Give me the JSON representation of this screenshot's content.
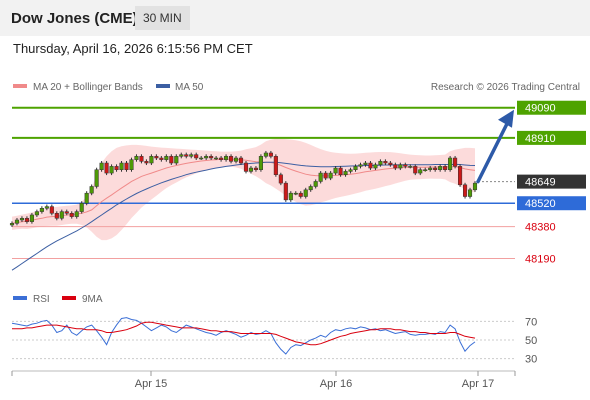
{
  "header": {
    "title": "Dow Jones (CME)",
    "interval": "30 MIN",
    "datetime": "Thursday, April 16, 2026 6:15:56 PM CET",
    "credit": "Research © 2026 Trading Central"
  },
  "legend": {
    "ma20": "MA 20 + Bollinger Bands",
    "ma50": "MA 50",
    "rsi": "RSI",
    "rsi_ma": "9MA"
  },
  "colors": {
    "resistance": "#4ea300",
    "pivot": "#2e6bd8",
    "support": "#d9000f",
    "current": "#333333",
    "arrow": "#2d5aa8",
    "ma20": "#f08a8a",
    "band": "#fbd5d5",
    "ma50": "#3c5fa3",
    "rsi": "#3b6fd6",
    "rsi_ma": "#d9000f"
  },
  "chart_data": {
    "type": "candlestick",
    "x_ticks": [
      "Apr 15",
      "Apr 16",
      "Apr 17"
    ],
    "y_range": [
      48020,
      49160
    ],
    "levels": [
      {
        "value": 49090,
        "label": "49090",
        "kind": "resistance"
      },
      {
        "value": 48910,
        "label": "48910",
        "kind": "resistance"
      },
      {
        "value": 48649,
        "label": "48649",
        "kind": "current"
      },
      {
        "value": 48520,
        "label": "48520",
        "kind": "pivot"
      },
      {
        "value": 48380,
        "label": "48380",
        "kind": "support"
      },
      {
        "value": 48190,
        "label": "48190",
        "kind": "support"
      }
    ],
    "forecast_arrow": {
      "from": 48649,
      "to": 49090
    },
    "price_close": [
      48400,
      48420,
      48430,
      48410,
      48450,
      48470,
      48490,
      48500,
      48460,
      48430,
      48470,
      48460,
      48440,
      48470,
      48520,
      48580,
      48620,
      48720,
      48760,
      48700,
      48740,
      48720,
      48760,
      48720,
      48780,
      48800,
      48770,
      48760,
      48800,
      48790,
      48780,
      48800,
      48760,
      48800,
      48810,
      48800,
      48810,
      48790,
      48790,
      48800,
      48790,
      48790,
      48780,
      48800,
      48770,
      48790,
      48760,
      48710,
      48730,
      48720,
      48800,
      48820,
      48800,
      48690,
      48640,
      48540,
      48580,
      48580,
      48560,
      48600,
      48620,
      48650,
      48700,
      48670,
      48700,
      48730,
      48690,
      48710,
      48720,
      48740,
      48750,
      48760,
      48730,
      48750,
      48770,
      48760,
      48750,
      48730,
      48750,
      48740,
      48740,
      48700,
      48720,
      48720,
      48730,
      48720,
      48740,
      48720,
      48790,
      48740,
      48630,
      48560,
      48600,
      48640
    ],
    "ma20": [
      48400,
      48405,
      48410,
      48412,
      48418,
      48425,
      48430,
      48437,
      48440,
      48442,
      48446,
      48450,
      48452,
      48455,
      48460,
      48468,
      48480,
      48505,
      48530,
      48550,
      48570,
      48590,
      48610,
      48630,
      48650,
      48665,
      48680,
      48690,
      48700,
      48710,
      48720,
      48730,
      48738,
      48745,
      48752,
      48758,
      48763,
      48768,
      48772,
      48775,
      48778,
      48780,
      48782,
      48783,
      48783,
      48782,
      48780,
      48776,
      48772,
      48768,
      48766,
      48765,
      48763,
      48756,
      48746,
      48733,
      48722,
      48712,
      48702,
      48693,
      48688,
      48685,
      48684,
      48683,
      48684,
      48686,
      48688,
      48690,
      48693,
      48697,
      48702,
      48708,
      48712,
      48716,
      48720,
      48724,
      48727,
      48730,
      48732,
      48734,
      48735,
      48735,
      48735,
      48735,
      48736,
      48736,
      48737,
      48736,
      48738,
      48738,
      48733,
      48725,
      48720,
      48716
    ],
    "ma50": [
      48120,
      48140,
      48160,
      48180,
      48200,
      48220,
      48240,
      48260,
      48278,
      48295,
      48310,
      48325,
      48340,
      48355,
      48372,
      48390,
      48410,
      48430,
      48450,
      48470,
      48490,
      48510,
      48528,
      48545,
      48562,
      48578,
      48592,
      48605,
      48618,
      48630,
      48642,
      48652,
      48662,
      48672,
      48681,
      48690,
      48698,
      48705,
      48712,
      48718,
      48724,
      48730,
      48735,
      48740,
      48744,
      48748,
      48752,
      48755,
      48758,
      48760,
      48762,
      48764,
      48765,
      48764,
      48762,
      48758,
      48754,
      48750,
      48746,
      48743,
      48741,
      48739,
      48738,
      48738,
      48738,
      48739,
      48740,
      48741,
      48742,
      48743,
      48744,
      48745,
      48745,
      48746,
      48747,
      48748,
      48748,
      48749,
      48749,
      48750,
      48750,
      48750,
      48750,
      48750,
      48750,
      48751,
      48751,
      48751,
      48751,
      48752,
      48751,
      48748,
      48746,
      48745
    ],
    "bb_upper": [
      48440,
      48445,
      48452,
      48458,
      48465,
      48473,
      48480,
      48490,
      48495,
      48498,
      48502,
      48505,
      48507,
      48512,
      48530,
      48560,
      48610,
      48690,
      48760,
      48800,
      48830,
      48850,
      48860,
      48865,
      48868,
      48868,
      48866,
      48862,
      48858,
      48855,
      48852,
      48850,
      48848,
      48846,
      48844,
      48842,
      48840,
      48838,
      48836,
      48834,
      48832,
      48830,
      48828,
      48828,
      48828,
      48830,
      48834,
      48842,
      48848,
      48855,
      48870,
      48890,
      48900,
      48905,
      48905,
      48903,
      48900,
      48896,
      48890,
      48880,
      48868,
      48855,
      48843,
      48833,
      48826,
      48821,
      48818,
      48816,
      48815,
      48816,
      48818,
      48821,
      48823,
      48825,
      48826,
      48826,
      48825,
      48822,
      48818,
      48814,
      48810,
      48808,
      48806,
      48805,
      48805,
      48806,
      48808,
      48810,
      48830,
      48840,
      48845,
      48850,
      48850,
      48848
    ],
    "bb_lower": [
      48360,
      48365,
      48368,
      48366,
      48371,
      48377,
      48380,
      48384,
      48385,
      48386,
      48390,
      48395,
      48397,
      48398,
      48390,
      48376,
      48350,
      48320,
      48300,
      48300,
      48310,
      48330,
      48360,
      48395,
      48432,
      48462,
      48494,
      48518,
      48542,
      48565,
      48588,
      48610,
      48628,
      48644,
      48660,
      48674,
      48686,
      48698,
      48708,
      48716,
      48724,
      48730,
      48736,
      48738,
      48738,
      48734,
      48726,
      48710,
      48696,
      48681,
      48662,
      48640,
      48626,
      48607,
      48587,
      48563,
      48544,
      48528,
      48514,
      48506,
      48508,
      48515,
      48525,
      48533,
      48542,
      48551,
      48558,
      48564,
      48571,
      48578,
      48586,
      48595,
      48601,
      48607,
      48614,
      48622,
      48629,
      48638,
      48646,
      48654,
      48660,
      48662,
      48664,
      48665,
      48667,
      48666,
      48666,
      48662,
      48646,
      48636,
      48621,
      48600,
      48590,
      48584
    ],
    "rsi": {
      "y_ticks": [
        70,
        50,
        30
      ],
      "y_range": [
        20,
        80
      ],
      "values": [
        68,
        67,
        66,
        65,
        67,
        68,
        70,
        71,
        66,
        58,
        60,
        66,
        58,
        55,
        60,
        64,
        66,
        60,
        53,
        45,
        58,
        66,
        73,
        74,
        72,
        71,
        68,
        64,
        60,
        63,
        66,
        64,
        60,
        58,
        62,
        66,
        64,
        62,
        60,
        58,
        57,
        55,
        58,
        60,
        58,
        56,
        53,
        55,
        58,
        56,
        57,
        60,
        57,
        47,
        40,
        35,
        42,
        45,
        44,
        47,
        50,
        52,
        55,
        53,
        58,
        61,
        60,
        62,
        63,
        62,
        64,
        63,
        61,
        62,
        60,
        61,
        59,
        57,
        58,
        59,
        56,
        55,
        56,
        56,
        57,
        56,
        59,
        58,
        66,
        62,
        48,
        38,
        44,
        48
      ],
      "ma9": [
        62,
        62,
        62,
        63,
        63,
        64,
        65,
        66,
        66,
        66,
        65,
        64,
        63,
        62,
        62,
        61,
        61,
        61,
        60,
        58,
        58,
        59,
        60,
        61,
        63,
        65,
        68,
        69,
        69,
        68,
        67,
        66,
        65,
        64,
        63,
        63,
        63,
        63,
        62,
        61,
        60,
        60,
        59,
        59,
        59,
        58,
        57,
        57,
        57,
        57,
        57,
        57,
        57,
        56,
        54,
        52,
        50,
        48,
        47,
        46,
        45,
        45,
        46,
        48,
        50,
        52,
        54,
        55,
        57,
        58,
        59,
        60,
        61,
        61,
        62,
        62,
        62,
        61,
        61,
        60,
        59,
        59,
        58,
        58,
        57,
        57,
        57,
        57,
        58,
        58,
        56,
        54,
        53,
        52
      ]
    }
  }
}
